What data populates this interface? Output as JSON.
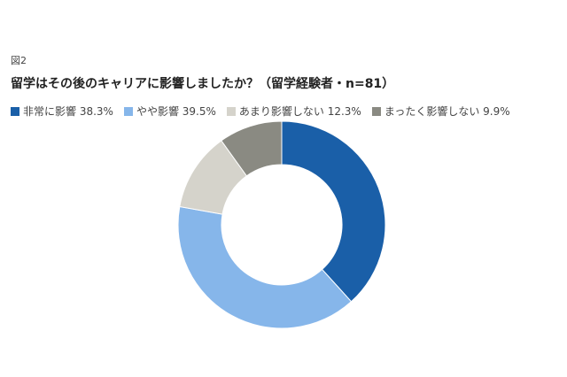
{
  "figure_label": "図2",
  "chart_data": {
    "type": "pie",
    "donut": true,
    "title": "留学はその後のキャリアに影響しましたか？（留学経験者・n=81）",
    "categories": [
      "非常に影響",
      "やや影響",
      "あまり影響しない",
      "まったく影響しない"
    ],
    "values": [
      38.3,
      39.5,
      12.3,
      9.9
    ],
    "legend_labels": [
      "非常に影響 38.3%",
      "やや影響 39.5%",
      "あまり影響しない 12.3%",
      "まったく影響しない 9.9%"
    ],
    "colors": [
      "#1a5fa8",
      "#86b6ea",
      "#d5d3cb",
      "#8a8a82"
    ],
    "legend_position": "top-left"
  }
}
